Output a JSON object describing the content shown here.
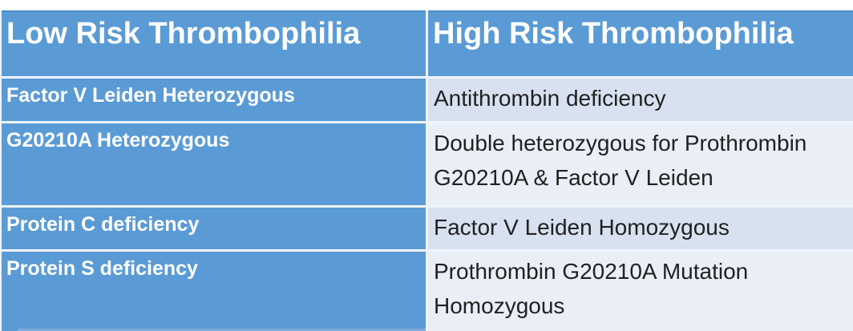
{
  "table": {
    "columns": {
      "low": {
        "header": "Low Risk Thrombophilia"
      },
      "high": {
        "header": "High Risk Thrombophilia"
      }
    },
    "rows": [
      {
        "low": "Factor V Leiden Heterozygous",
        "high": "Antithrombin deficiency"
      },
      {
        "low": "G20210A Heterozygous",
        "high": "Double heterozygous for Prothrombin G20210A & Factor V Leiden"
      },
      {
        "low": "Protein C deficiency",
        "high": "Factor V Leiden Homozygous"
      },
      {
        "low": "Protein S deficiency",
        "high": "Prothrombin G20210A Mutation Homozygous"
      }
    ]
  },
  "colors": {
    "header-blue": "#5B9BD5",
    "header-top-edge": "#4C8DC9",
    "band-light": "#D7E1F0",
    "band-lighter": "#EAEEF6",
    "grid-line": "#EFF3FA",
    "text-dark": "#212121",
    "partial-row-blue": "#7EA9DB"
  }
}
